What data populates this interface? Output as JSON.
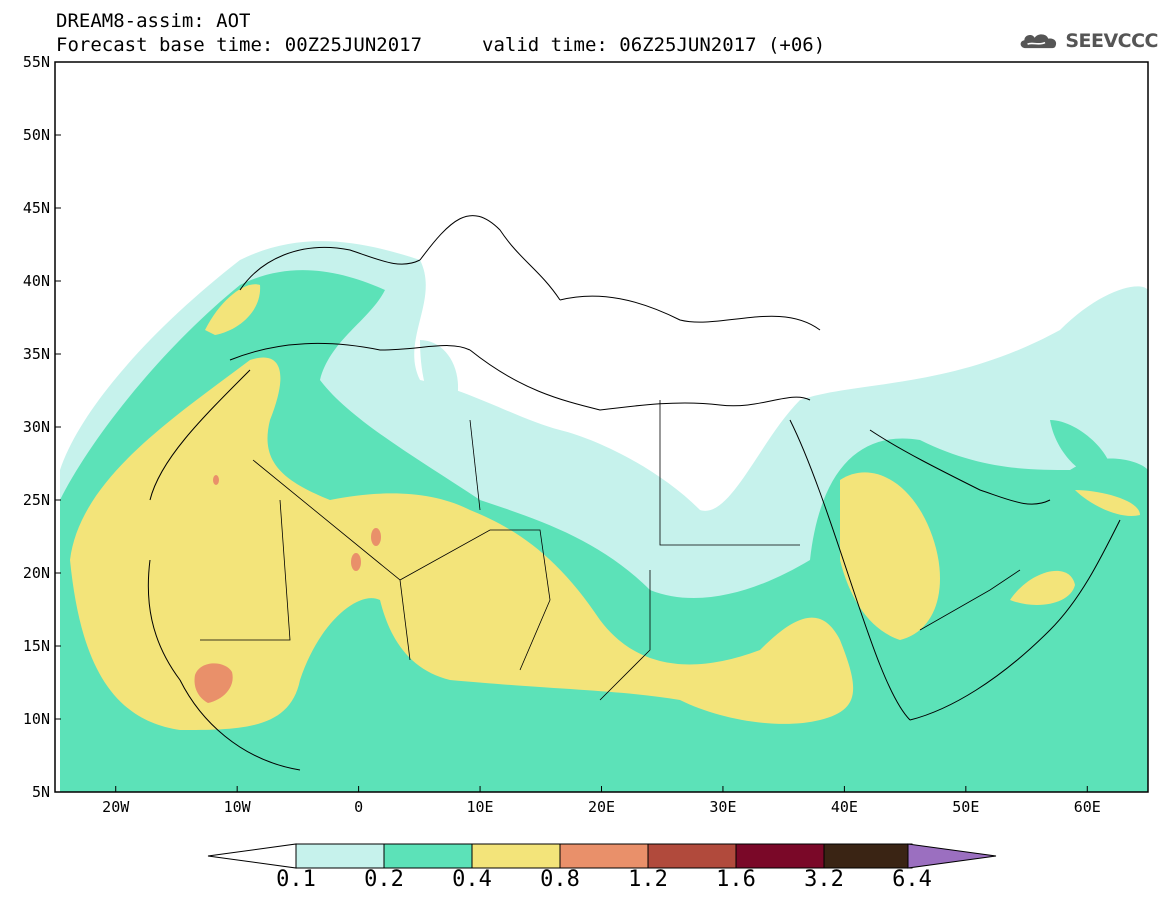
{
  "header": {
    "title": "DREAM8-assim: AOT",
    "base_time": "Forecast base time: 00Z25JUN2017",
    "valid_time": "valid time: 06Z25JUN2017 (+06)"
  },
  "logo": {
    "text": "SEEVCCC",
    "icon": "cloud-icon",
    "color": "#555555"
  },
  "map": {
    "lat_labels": [
      "55N",
      "50N",
      "45N",
      "40N",
      "35N",
      "30N",
      "25N",
      "20N",
      "15N",
      "10N",
      "5N"
    ],
    "lon_labels": [
      "20W",
      "10W",
      "0",
      "10E",
      "20E",
      "30E",
      "40E",
      "50E",
      "60E"
    ],
    "extent": {
      "lon": [
        -25,
        65
      ],
      "lat": [
        5,
        55
      ]
    }
  },
  "legend": {
    "levels": [
      "0.1",
      "0.2",
      "0.4",
      "0.8",
      "1.2",
      "1.6",
      "3.2",
      "6.4"
    ],
    "colors": [
      "#c6f2ec",
      "#5ce2b8",
      "#f3e47a",
      "#e9906a",
      "#b14a3c",
      "#7a0828",
      "#3a2414",
      "#9b6fc0"
    ]
  }
}
